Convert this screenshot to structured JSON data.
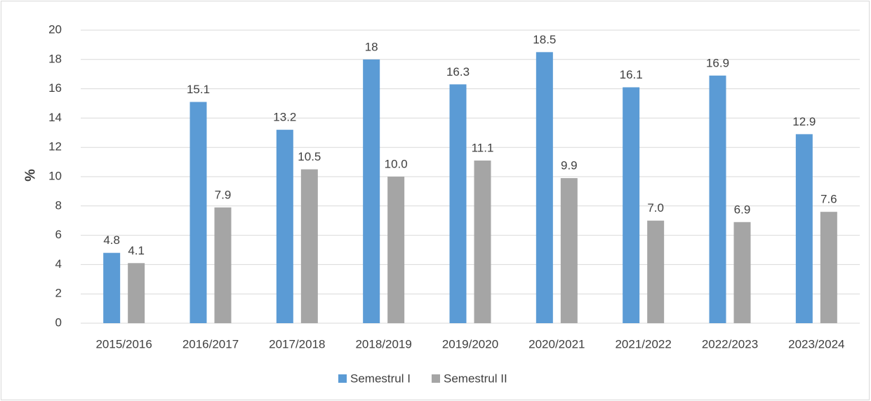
{
  "chart_data": {
    "type": "bar",
    "y_label": "%",
    "categories": [
      "2015/2016",
      "2016/2017",
      "2017/2018",
      "2018/2019",
      "2019/2020",
      "2020/2021",
      "2021/2022",
      "2022/2023",
      "2023/2024"
    ],
    "series": [
      {
        "name": "Semestrul I",
        "color": "#5b9bd5",
        "values": [
          4.8,
          15.1,
          13.2,
          18,
          16.3,
          18.5,
          16.1,
          16.9,
          12.9
        ]
      },
      {
        "name": "Semestrul II",
        "color": "#a5a5a5",
        "values": [
          4.1,
          7.9,
          10.5,
          10,
          11.1,
          9.9,
          7,
          6.9,
          7.6
        ],
        "value_labels": [
          "4.1",
          "7.9",
          "10.5",
          "10.0",
          "11.1",
          "9.9",
          "7.0",
          "6.9",
          "7.6"
        ]
      }
    ],
    "ylim": [
      0,
      20
    ],
    "yticks": [
      0,
      2,
      4,
      6,
      8,
      10,
      12,
      14,
      16,
      18,
      20
    ],
    "grid": true,
    "legend": "bottom"
  }
}
